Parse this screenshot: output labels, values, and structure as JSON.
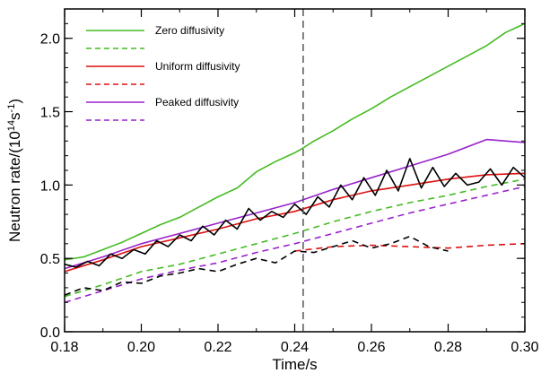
{
  "chart_data": {
    "type": "line",
    "title": "",
    "xlabel": "Time/s",
    "ylabel": {
      "pre": "Neutron rate/(10",
      "sup1": "14",
      "mid": "s",
      "sup2": "-1",
      "post": ")"
    },
    "xlim": [
      0.18,
      0.3
    ],
    "ylim": [
      0.0,
      2.2
    ],
    "xticks": [
      0.18,
      0.2,
      0.22,
      0.24,
      0.26,
      0.28,
      0.3
    ],
    "xtick_labels": [
      "0.18",
      "0.20",
      "0.22",
      "0.24",
      "0.26",
      "0.28",
      "0.30"
    ],
    "yticks": [
      0.0,
      0.5,
      1.0,
      1.5,
      2.0
    ],
    "ytick_labels": [
      "0.0",
      "0.5",
      "1.0",
      "1.5",
      "2.0"
    ],
    "vline_x": 0.2422,
    "grid": false,
    "legend_position": "top-left",
    "legend": [
      {
        "label": "Zero diffusivity",
        "color": "#44bb22",
        "dash": "solid"
      },
      {
        "label": "",
        "color": "#44bb22",
        "dash": "dashed"
      },
      {
        "label": "Uniform diffusivity",
        "color": "#dd1111",
        "dash": "solid"
      },
      {
        "label": "",
        "color": "#dd1111",
        "dash": "dashed"
      },
      {
        "label": "Peaked diffusivity",
        "color": "#9922cc",
        "dash": "solid"
      },
      {
        "label": "",
        "color": "#9922cc",
        "dash": "dashed"
      }
    ],
    "series": [
      {
        "color": "#44bb22",
        "dash": "solid",
        "x": [
          0.18,
          0.185,
          0.19,
          0.195,
          0.2,
          0.205,
          0.21,
          0.215,
          0.22,
          0.225,
          0.23,
          0.235,
          0.24,
          0.242,
          0.245,
          0.25,
          0.255,
          0.26,
          0.265,
          0.27,
          0.275,
          0.28,
          0.285,
          0.29,
          0.295,
          0.3
        ],
        "y": [
          0.49,
          0.51,
          0.56,
          0.61,
          0.67,
          0.73,
          0.78,
          0.85,
          0.92,
          0.98,
          1.09,
          1.16,
          1.22,
          1.25,
          1.3,
          1.37,
          1.45,
          1.52,
          1.6,
          1.67,
          1.74,
          1.81,
          1.88,
          1.95,
          2.04,
          2.1
        ]
      },
      {
        "color": "#44bb22",
        "dash": "dashed",
        "x": [
          0.18,
          0.19,
          0.2,
          0.21,
          0.22,
          0.23,
          0.24,
          0.25,
          0.26,
          0.27,
          0.28,
          0.29,
          0.3
        ],
        "y": [
          0.24,
          0.32,
          0.41,
          0.46,
          0.53,
          0.6,
          0.67,
          0.75,
          0.82,
          0.88,
          0.93,
          0.99,
          1.04
        ]
      },
      {
        "color": "#dd1111",
        "dash": "solid",
        "x": [
          0.18,
          0.19,
          0.2,
          0.21,
          0.22,
          0.23,
          0.24,
          0.25,
          0.26,
          0.27,
          0.28,
          0.29,
          0.3
        ],
        "y": [
          0.41,
          0.49,
          0.58,
          0.64,
          0.7,
          0.77,
          0.82,
          0.9,
          0.96,
          1.0,
          1.04,
          1.07,
          1.08
        ]
      },
      {
        "color": "#dd1111",
        "dash": "dashed",
        "x": [
          0.24,
          0.25,
          0.26,
          0.27,
          0.28,
          0.29,
          0.3
        ],
        "y": [
          0.55,
          0.58,
          0.59,
          0.58,
          0.57,
          0.59,
          0.6
        ]
      },
      {
        "color": "#9922cc",
        "dash": "solid",
        "x": [
          0.18,
          0.19,
          0.2,
          0.21,
          0.22,
          0.23,
          0.24,
          0.25,
          0.26,
          0.27,
          0.28,
          0.29,
          0.3
        ],
        "y": [
          0.43,
          0.51,
          0.6,
          0.67,
          0.74,
          0.81,
          0.88,
          0.97,
          1.05,
          1.13,
          1.21,
          1.31,
          1.29
        ]
      },
      {
        "color": "#9922cc",
        "dash": "dashed",
        "x": [
          0.18,
          0.19,
          0.2,
          0.21,
          0.22,
          0.23,
          0.24,
          0.25,
          0.26,
          0.27,
          0.28,
          0.29,
          0.3
        ],
        "y": [
          0.2,
          0.28,
          0.36,
          0.42,
          0.47,
          0.54,
          0.6,
          0.67,
          0.74,
          0.81,
          0.87,
          0.93,
          0.99
        ]
      },
      {
        "color": "#000000",
        "dash": "solid",
        "x": [
          0.18,
          0.183,
          0.186,
          0.189,
          0.192,
          0.195,
          0.198,
          0.201,
          0.204,
          0.207,
          0.21,
          0.213,
          0.216,
          0.219,
          0.222,
          0.225,
          0.228,
          0.231,
          0.234,
          0.237,
          0.24,
          0.243,
          0.246,
          0.249,
          0.252,
          0.255,
          0.258,
          0.261,
          0.264,
          0.267,
          0.27,
          0.273,
          0.276,
          0.279,
          0.282,
          0.285,
          0.288,
          0.291,
          0.294,
          0.297,
          0.3
        ],
        "y": [
          0.46,
          0.44,
          0.48,
          0.45,
          0.53,
          0.5,
          0.56,
          0.53,
          0.62,
          0.58,
          0.66,
          0.62,
          0.72,
          0.66,
          0.76,
          0.7,
          0.84,
          0.76,
          0.82,
          0.78,
          0.87,
          0.8,
          0.92,
          0.85,
          1.0,
          0.9,
          1.05,
          0.93,
          1.1,
          0.96,
          1.18,
          0.98,
          1.12,
          0.99,
          1.08,
          1.0,
          1.02,
          1.11,
          1.0,
          1.12,
          1.05
        ]
      },
      {
        "color": "#000000",
        "dash": "dashed",
        "x": [
          0.18,
          0.185,
          0.19,
          0.195,
          0.2,
          0.205,
          0.21,
          0.215,
          0.22,
          0.225,
          0.23,
          0.235,
          0.24,
          0.245,
          0.25,
          0.255,
          0.26,
          0.265,
          0.27,
          0.275,
          0.28
        ],
        "y": [
          0.25,
          0.3,
          0.28,
          0.34,
          0.33,
          0.38,
          0.4,
          0.43,
          0.41,
          0.46,
          0.5,
          0.47,
          0.55,
          0.54,
          0.58,
          0.62,
          0.57,
          0.6,
          0.65,
          0.58,
          0.55
        ]
      }
    ]
  }
}
